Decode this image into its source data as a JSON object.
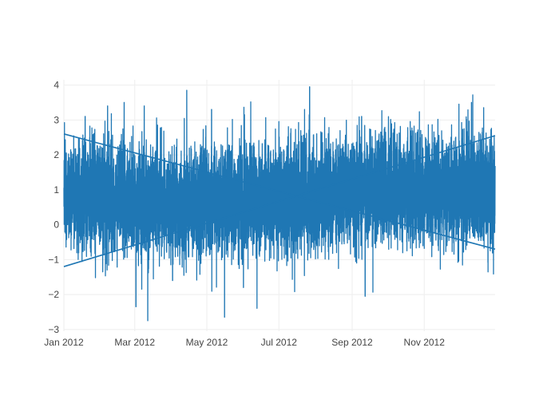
{
  "chart_data": {
    "type": "line",
    "title": "",
    "xlabel": "",
    "ylabel": "",
    "x_range": [
      "2012-01-01",
      "2012-12-31"
    ],
    "ylim": [
      -3.05,
      4.15
    ],
    "grid": true,
    "legend": "none",
    "x_ticks": [
      {
        "date": "2012-01-01",
        "label": "Jan 2012"
      },
      {
        "date": "2012-03-01",
        "label": "Mar 2012"
      },
      {
        "date": "2012-05-01",
        "label": "May 2012"
      },
      {
        "date": "2012-07-01",
        "label": "Jul 2012"
      },
      {
        "date": "2012-09-01",
        "label": "Sep 2012"
      },
      {
        "date": "2012-11-01",
        "label": "Nov 2012"
      }
    ],
    "y_ticks": [
      {
        "value": 4,
        "label": "4"
      },
      {
        "value": 3,
        "label": "3"
      },
      {
        "value": 2,
        "label": "2"
      },
      {
        "value": 1,
        "label": "1"
      },
      {
        "value": 0,
        "label": "0"
      },
      {
        "value": -1,
        "label": "−1"
      },
      {
        "value": -2,
        "label": "−2"
      },
      {
        "value": -3,
        "label": "−3"
      }
    ],
    "series": [
      {
        "color": "#1f77b4",
        "x_start": "2012-01-01",
        "x_end": "2012-12-31",
        "center_trend": [
          [
            0.5,
            0.8
          ],
          [
            0.38,
            0.25
          ],
          [
            0.5,
            0.5
          ],
          [
            0.75,
            0.8
          ],
          [
            0.9,
            0.55
          ]
        ],
        "spread_sd": 0.75,
        "spikes": [
          [
            "2012-01-19",
            3.1
          ],
          [
            "2012-02-07",
            3.4
          ],
          [
            "2012-02-21",
            3.5
          ],
          [
            "2012-03-09",
            3.4
          ],
          [
            "2012-04-14",
            3.85
          ],
          [
            "2012-05-05",
            3.3
          ],
          [
            "2012-07-27",
            3.95
          ],
          [
            "2012-09-09",
            3.1
          ],
          [
            "2012-12-11",
            3.5
          ],
          [
            "2012-03-02",
            -2.35
          ],
          [
            "2012-03-12",
            -2.75
          ],
          [
            "2012-05-16",
            -2.65
          ],
          [
            "2012-09-12",
            -2.05
          ],
          [
            "2012-04-02",
            -1.6
          ],
          [
            "2012-06-01",
            -1.8
          ]
        ],
        "wrap_segments": [
          [
            [
              "2012-12-31",
              2.55
            ],
            [
              "2012-01-01",
              -1.2
            ]
          ],
          [
            [
              "2012-01-01",
              2.6
            ],
            [
              "2012-12-31",
              -0.7
            ]
          ]
        ]
      }
    ]
  }
}
